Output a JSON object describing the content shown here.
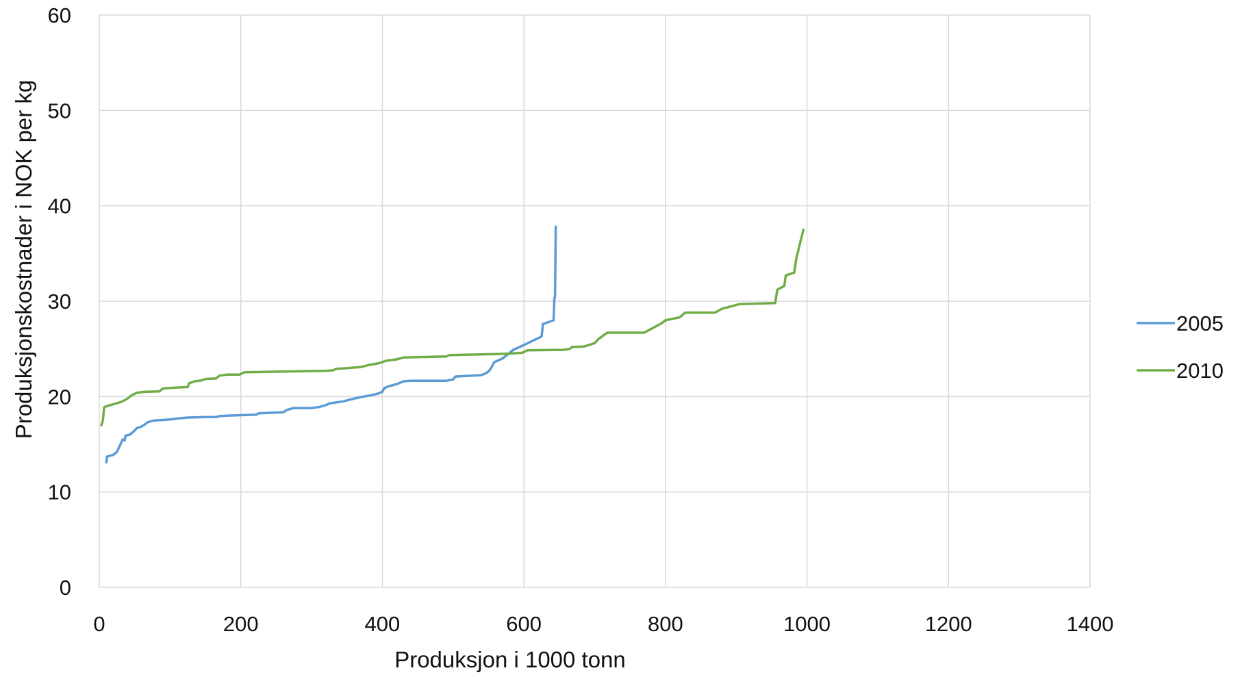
{
  "chart_data": {
    "type": "line",
    "xlabel": "Produksjon i 1000 tonn",
    "ylabel": "Produksjonskostnader i NOK per kg",
    "xlim": [
      0,
      1400
    ],
    "ylim": [
      0,
      60
    ],
    "xticks": [
      0,
      200,
      400,
      600,
      800,
      1000,
      1200,
      1400
    ],
    "yticks": [
      0,
      10,
      20,
      30,
      40,
      50,
      60
    ],
    "grid": true,
    "legend_position": "right",
    "series": [
      {
        "name": "2005",
        "color": "#5B9BD5",
        "points": [
          [
            10,
            13.1
          ],
          [
            11,
            13.7
          ],
          [
            20,
            13.9
          ],
          [
            25,
            14.2
          ],
          [
            30,
            15.0
          ],
          [
            33,
            15.5
          ],
          [
            36,
            15.4
          ],
          [
            37,
            15.9
          ],
          [
            43,
            16.0
          ],
          [
            48,
            16.3
          ],
          [
            53,
            16.7
          ],
          [
            58,
            16.8
          ],
          [
            63,
            17.0
          ],
          [
            68,
            17.3
          ],
          [
            72,
            17.4
          ],
          [
            78,
            17.5
          ],
          [
            90,
            17.55
          ],
          [
            100,
            17.6
          ],
          [
            110,
            17.7
          ],
          [
            125,
            17.8
          ],
          [
            150,
            17.85
          ],
          [
            165,
            17.85
          ],
          [
            170,
            17.95
          ],
          [
            180,
            18.0
          ],
          [
            200,
            18.05
          ],
          [
            222,
            18.1
          ],
          [
            225,
            18.25
          ],
          [
            260,
            18.35
          ],
          [
            265,
            18.6
          ],
          [
            275,
            18.8
          ],
          [
            300,
            18.8
          ],
          [
            310,
            18.9
          ],
          [
            318,
            19.05
          ],
          [
            326,
            19.3
          ],
          [
            345,
            19.5
          ],
          [
            355,
            19.7
          ],
          [
            370,
            19.95
          ],
          [
            385,
            20.15
          ],
          [
            393,
            20.3
          ],
          [
            400,
            20.5
          ],
          [
            403,
            20.9
          ],
          [
            410,
            21.1
          ],
          [
            420,
            21.3
          ],
          [
            430,
            21.6
          ],
          [
            440,
            21.65
          ],
          [
            490,
            21.65
          ],
          [
            500,
            21.8
          ],
          [
            503,
            22.1
          ],
          [
            540,
            22.25
          ],
          [
            548,
            22.5
          ],
          [
            553,
            22.9
          ],
          [
            558,
            23.6
          ],
          [
            570,
            24.0
          ],
          [
            585,
            24.9
          ],
          [
            600,
            25.4
          ],
          [
            625,
            26.3
          ],
          [
            627,
            27.6
          ],
          [
            642,
            28.0
          ],
          [
            643,
            30.2
          ],
          [
            644,
            30.5
          ],
          [
            645,
            37.8
          ]
        ]
      },
      {
        "name": "2010",
        "color": "#70AD47",
        "points": [
          [
            3,
            17.0
          ],
          [
            5,
            17.5
          ],
          [
            7,
            18.9
          ],
          [
            15,
            19.1
          ],
          [
            25,
            19.3
          ],
          [
            33,
            19.5
          ],
          [
            40,
            19.8
          ],
          [
            45,
            20.1
          ],
          [
            53,
            20.4
          ],
          [
            63,
            20.5
          ],
          [
            85,
            20.55
          ],
          [
            90,
            20.85
          ],
          [
            110,
            20.95
          ],
          [
            125,
            21.0
          ],
          [
            127,
            21.4
          ],
          [
            135,
            21.6
          ],
          [
            145,
            21.7
          ],
          [
            150,
            21.85
          ],
          [
            165,
            21.9
          ],
          [
            170,
            22.2
          ],
          [
            180,
            22.3
          ],
          [
            198,
            22.3
          ],
          [
            205,
            22.55
          ],
          [
            240,
            22.6
          ],
          [
            320,
            22.7
          ],
          [
            330,
            22.75
          ],
          [
            335,
            22.9
          ],
          [
            345,
            22.95
          ],
          [
            370,
            23.1
          ],
          [
            380,
            23.3
          ],
          [
            395,
            23.5
          ],
          [
            405,
            23.75
          ],
          [
            420,
            23.9
          ],
          [
            430,
            24.1
          ],
          [
            490,
            24.2
          ],
          [
            495,
            24.35
          ],
          [
            560,
            24.45
          ],
          [
            580,
            24.5
          ],
          [
            598,
            24.6
          ],
          [
            605,
            24.85
          ],
          [
            655,
            24.9
          ],
          [
            665,
            25.0
          ],
          [
            668,
            25.2
          ],
          [
            685,
            25.25
          ],
          [
            700,
            25.6
          ],
          [
            705,
            26.0
          ],
          [
            712,
            26.4
          ],
          [
            718,
            26.7
          ],
          [
            770,
            26.7
          ],
          [
            785,
            27.3
          ],
          [
            795,
            27.7
          ],
          [
            800,
            28.0
          ],
          [
            820,
            28.3
          ],
          [
            828,
            28.8
          ],
          [
            870,
            28.8
          ],
          [
            880,
            29.2
          ],
          [
            905,
            29.7
          ],
          [
            955,
            29.8
          ],
          [
            958,
            31.2
          ],
          [
            968,
            31.6
          ],
          [
            970,
            32.7
          ],
          [
            982,
            33.0
          ],
          [
            985,
            34.5
          ],
          [
            990,
            36.0
          ],
          [
            995,
            37.5
          ]
        ]
      }
    ]
  }
}
